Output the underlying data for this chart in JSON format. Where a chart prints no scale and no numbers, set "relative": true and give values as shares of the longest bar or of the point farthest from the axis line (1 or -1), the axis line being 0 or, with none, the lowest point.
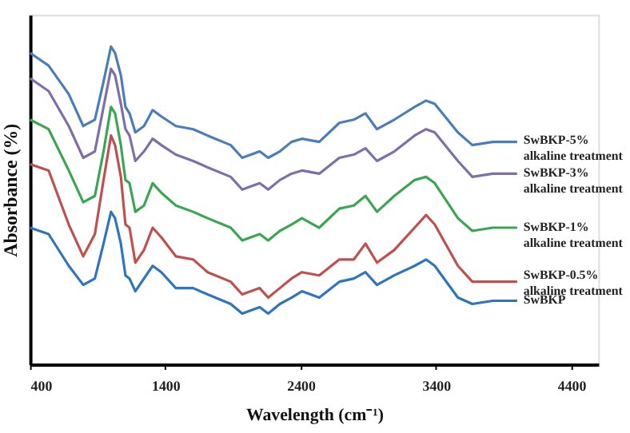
{
  "chart_data": {
    "type": "line",
    "relative": true,
    "xlabel": "Wavelength (cm⁻¹)",
    "ylabel": "Absorbance (%)",
    "xlim": [
      400,
      4600
    ],
    "xticks": [
      400,
      1400,
      2400,
      3400,
      4400
    ],
    "grid": false,
    "marker": "none",
    "line_style": "solid",
    "x": [
      400,
      537,
      686,
      793,
      879,
      943,
      998,
      1028,
      1071,
      1105,
      1135,
      1178,
      1242,
      1306,
      1370,
      1477,
      1605,
      1712,
      1883,
      1968,
      2097,
      2160,
      2246,
      2332,
      2409,
      2537,
      2686,
      2793,
      2879,
      2964,
      3092,
      3242,
      3327,
      3391,
      3562,
      3669,
      3819,
      4000
    ],
    "series": [
      {
        "name": "SwBKP-5%\nalkaline treatment",
        "color": "#4a7ebb",
        "values": [
          0.98,
          0.94,
          0.85,
          0.75,
          0.77,
          0.89,
          1.0,
          0.98,
          0.91,
          0.81,
          0.79,
          0.73,
          0.75,
          0.8,
          0.78,
          0.75,
          0.74,
          0.72,
          0.69,
          0.65,
          0.67,
          0.65,
          0.67,
          0.7,
          0.71,
          0.7,
          0.76,
          0.77,
          0.79,
          0.74,
          0.77,
          0.81,
          0.83,
          0.82,
          0.73,
          0.69,
          0.7,
          0.7
        ]
      },
      {
        "name": "SwBKP-3%\nalkaline treatment",
        "color": "#7f6fa8",
        "values": [
          0.9,
          0.86,
          0.75,
          0.65,
          0.67,
          0.81,
          0.93,
          0.91,
          0.82,
          0.74,
          0.72,
          0.64,
          0.67,
          0.71,
          0.69,
          0.66,
          0.64,
          0.62,
          0.59,
          0.55,
          0.57,
          0.55,
          0.58,
          0.6,
          0.61,
          0.6,
          0.65,
          0.66,
          0.68,
          0.64,
          0.67,
          0.72,
          0.74,
          0.73,
          0.64,
          0.59,
          0.6,
          0.6
        ]
      },
      {
        "name": "SwBKP-1%\nalkaline treatment",
        "color": "#3aa652",
        "values": [
          0.77,
          0.74,
          0.61,
          0.51,
          0.53,
          0.67,
          0.81,
          0.79,
          0.69,
          0.58,
          0.57,
          0.48,
          0.5,
          0.57,
          0.54,
          0.5,
          0.48,
          0.46,
          0.43,
          0.39,
          0.41,
          0.39,
          0.42,
          0.44,
          0.46,
          0.43,
          0.49,
          0.5,
          0.53,
          0.48,
          0.53,
          0.58,
          0.59,
          0.57,
          0.46,
          0.42,
          0.43,
          0.43
        ]
      },
      {
        "name": "SwBKP-0.5%\nalkaline treatment",
        "color": "#c0504d",
        "values": [
          0.63,
          0.61,
          0.44,
          0.34,
          0.41,
          0.58,
          0.72,
          0.69,
          0.59,
          0.44,
          0.43,
          0.32,
          0.36,
          0.43,
          0.4,
          0.34,
          0.33,
          0.29,
          0.26,
          0.22,
          0.24,
          0.21,
          0.24,
          0.27,
          0.29,
          0.28,
          0.33,
          0.33,
          0.38,
          0.32,
          0.36,
          0.43,
          0.47,
          0.44,
          0.31,
          0.26,
          0.26,
          0.26
        ]
      },
      {
        "name": "SwBKP",
        "color": "#2e75c0",
        "values": [
          0.43,
          0.41,
          0.31,
          0.25,
          0.27,
          0.38,
          0.48,
          0.46,
          0.38,
          0.28,
          0.27,
          0.23,
          0.27,
          0.31,
          0.29,
          0.24,
          0.24,
          0.22,
          0.19,
          0.16,
          0.18,
          0.16,
          0.19,
          0.21,
          0.23,
          0.21,
          0.26,
          0.27,
          0.29,
          0.25,
          0.28,
          0.31,
          0.33,
          0.31,
          0.21,
          0.19,
          0.2,
          0.2
        ]
      }
    ]
  }
}
